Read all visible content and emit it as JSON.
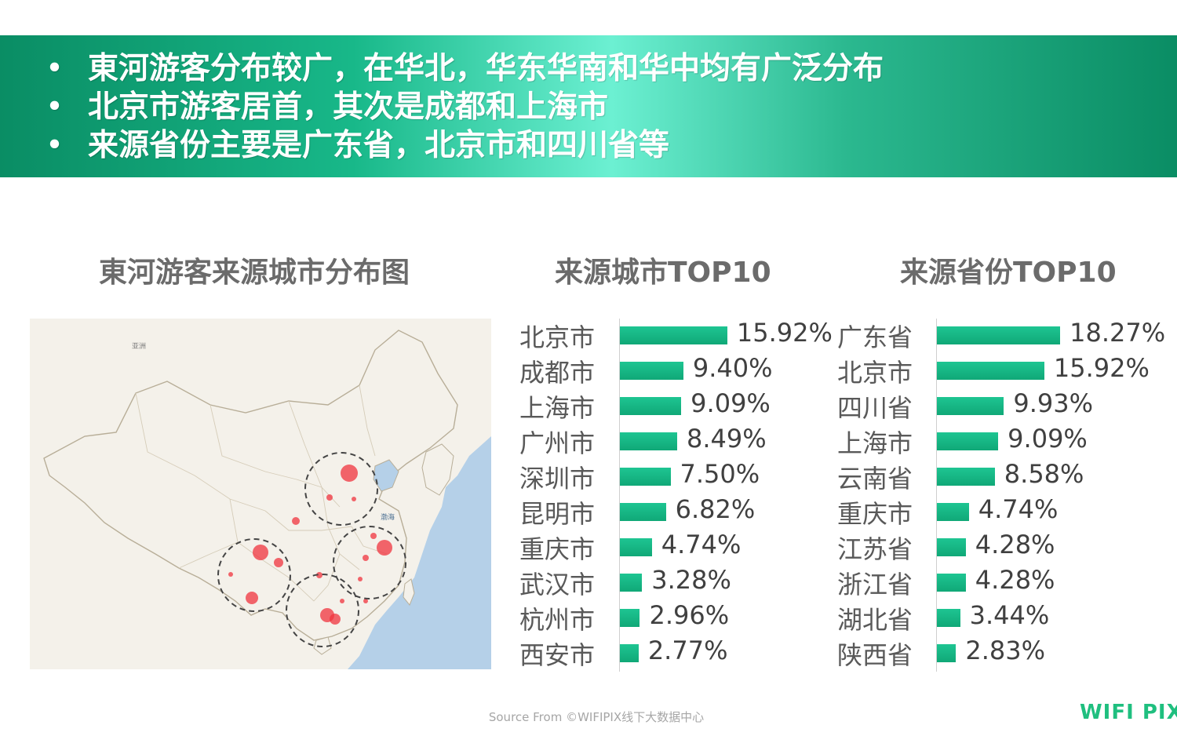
{
  "summary": {
    "bullet": "•",
    "points": [
      "東河游客分布较广，在华北，华东华南和华中均有广泛分布",
      "北京市游客居首，其次是成都和上海市",
      "来源省份主要是广东省，北京市和四川省等"
    ]
  },
  "map": {
    "title": "東河游客来源城市分布图",
    "sea_label": "渤海",
    "region_label": "亚洲",
    "colors": {
      "land": "#f4f1ea",
      "sea": "#b5d0e8",
      "border": "#c9c2b2",
      "dot": "#f0333d",
      "circle": "#444444"
    }
  },
  "chart_data": [
    {
      "type": "bar",
      "title": "来源城市TOP10",
      "categories": [
        "北京市",
        "成都市",
        "上海市",
        "广州市",
        "深圳市",
        "昆明市",
        "重庆市",
        "武汉市",
        "杭州市",
        "西安市"
      ],
      "values": [
        15.92,
        9.4,
        9.09,
        8.49,
        7.5,
        6.82,
        4.74,
        3.28,
        2.96,
        2.77
      ],
      "labels": [
        "15.92%",
        "9.40%",
        "9.09%",
        "8.49%",
        "7.50%",
        "6.82%",
        "4.74%",
        "3.28%",
        "2.96%",
        "2.77%"
      ],
      "orientation": "horizontal",
      "color": "#16b482"
    },
    {
      "type": "bar",
      "title": "来源省份TOP10",
      "categories": [
        "广东省",
        "北京市",
        "四川省",
        "上海市",
        "云南省",
        "重庆市",
        "江苏省",
        "浙江省",
        "湖北省",
        "陕西省"
      ],
      "values": [
        18.27,
        15.92,
        9.93,
        9.09,
        8.58,
        4.74,
        4.28,
        4.28,
        3.44,
        2.83
      ],
      "labels": [
        "18.27%",
        "15.92%",
        "9.93%",
        "9.09%",
        "8.58%",
        "4.74%",
        "4.28%",
        "4.28%",
        "3.44%",
        "2.83%"
      ],
      "orientation": "horizontal",
      "color": "#16b482"
    }
  ],
  "footer": {
    "source": "Source From ©WIFIPIX线下大数据中心",
    "logo": "WIFI PIX"
  }
}
